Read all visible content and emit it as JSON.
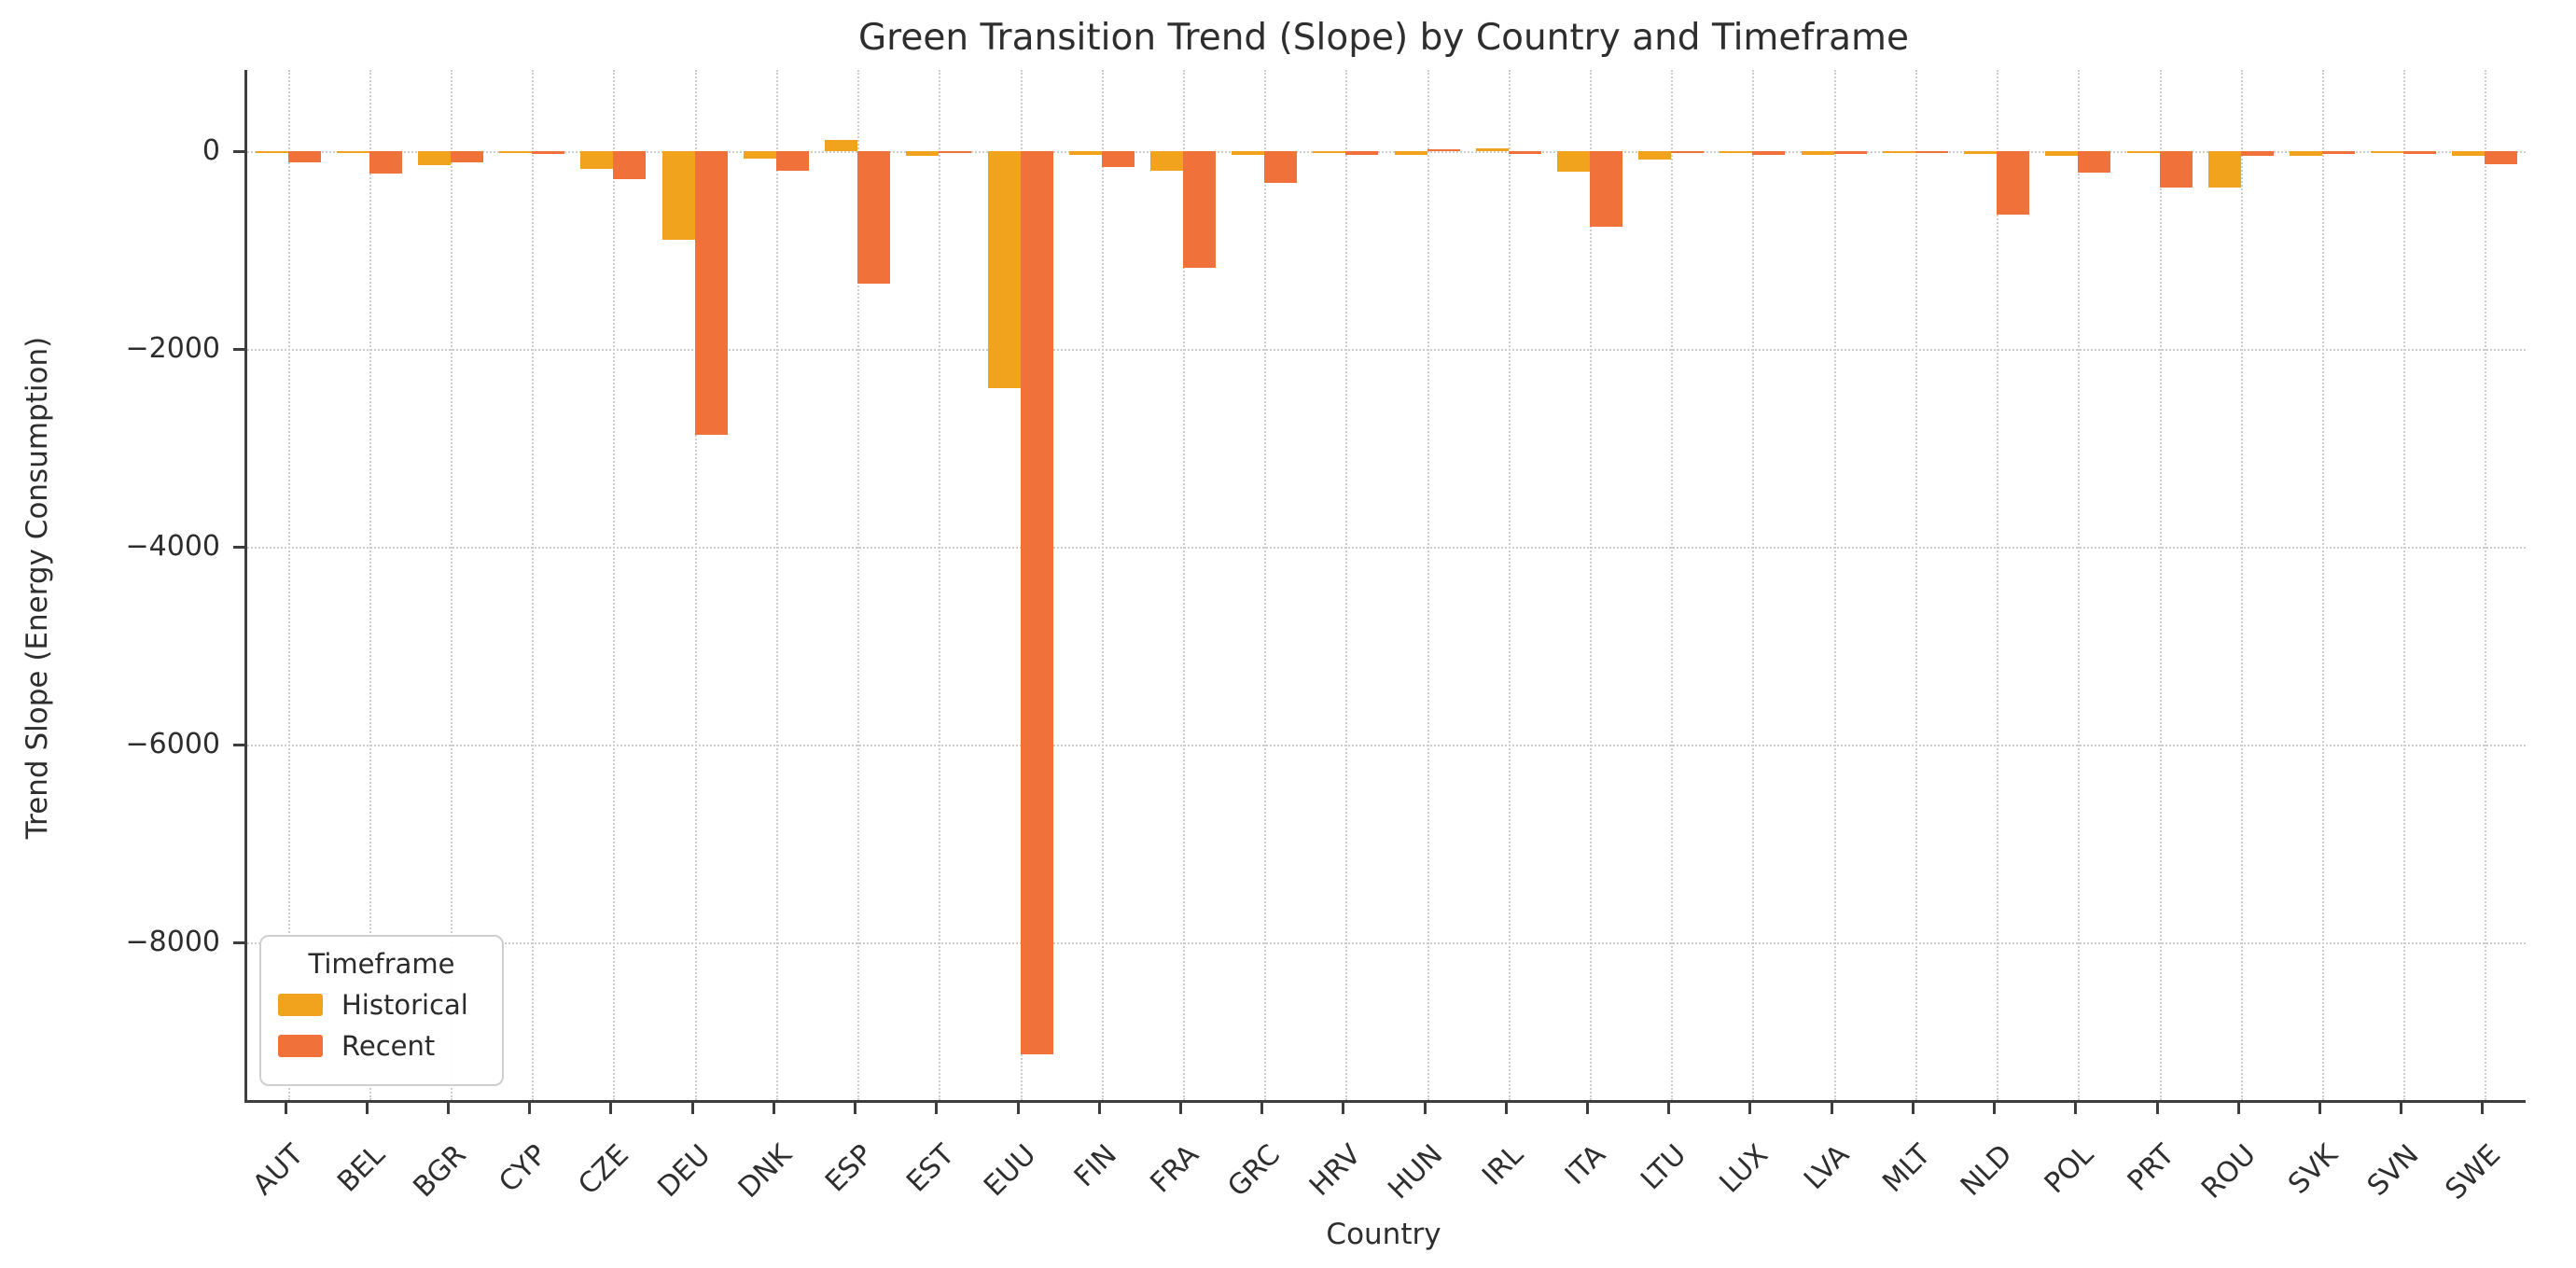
{
  "chart_data": {
    "type": "bar",
    "title": "Green Transition Trend (Slope) by Country and Timeframe",
    "xlabel": "Country",
    "ylabel": "Trend Slope (Energy Consumption)",
    "categories": [
      "AUT",
      "BEL",
      "BGR",
      "CYP",
      "CZE",
      "DEU",
      "DNK",
      "ESP",
      "EST",
      "EUU",
      "FIN",
      "FRA",
      "GRC",
      "HRV",
      "HUN",
      "IRL",
      "ITA",
      "LTU",
      "LUX",
      "LVA",
      "MLT",
      "NLD",
      "POL",
      "PRT",
      "ROU",
      "SVK",
      "SVN",
      "SWE"
    ],
    "series": [
      {
        "name": "Historical",
        "color": "#F1A31E",
        "values": [
          -20,
          -15,
          -140,
          -10,
          -175,
          -900,
          -80,
          115,
          -45,
          -2395,
          -40,
          -200,
          -35,
          -15,
          -40,
          30,
          -210,
          -85,
          -10,
          -40,
          -5,
          -30,
          -45,
          -5,
          -370,
          -50,
          -10,
          -45
        ]
      },
      {
        "name": "Recent",
        "color": "#F0713A",
        "values": [
          -115,
          -225,
          -110,
          -25,
          -280,
          -2870,
          -195,
          -1335,
          -20,
          -9130,
          -165,
          -1175,
          -325,
          -40,
          20,
          -30,
          -760,
          -15,
          -40,
          -25,
          -5,
          -640,
          -220,
          -370,
          -45,
          -30,
          -30,
          -135
        ]
      }
    ],
    "yticks": [
      {
        "value": 0,
        "label": "0"
      },
      {
        "value": -2000,
        "label": "−2000"
      },
      {
        "value": -4000,
        "label": "−4000"
      },
      {
        "value": -6000,
        "label": "−6000"
      },
      {
        "value": -8000,
        "label": "−8000"
      }
    ],
    "ylim": [
      -9590,
      820
    ],
    "grid": "dotted",
    "legend": {
      "title": "Timeframe",
      "position": "lower-left"
    }
  }
}
